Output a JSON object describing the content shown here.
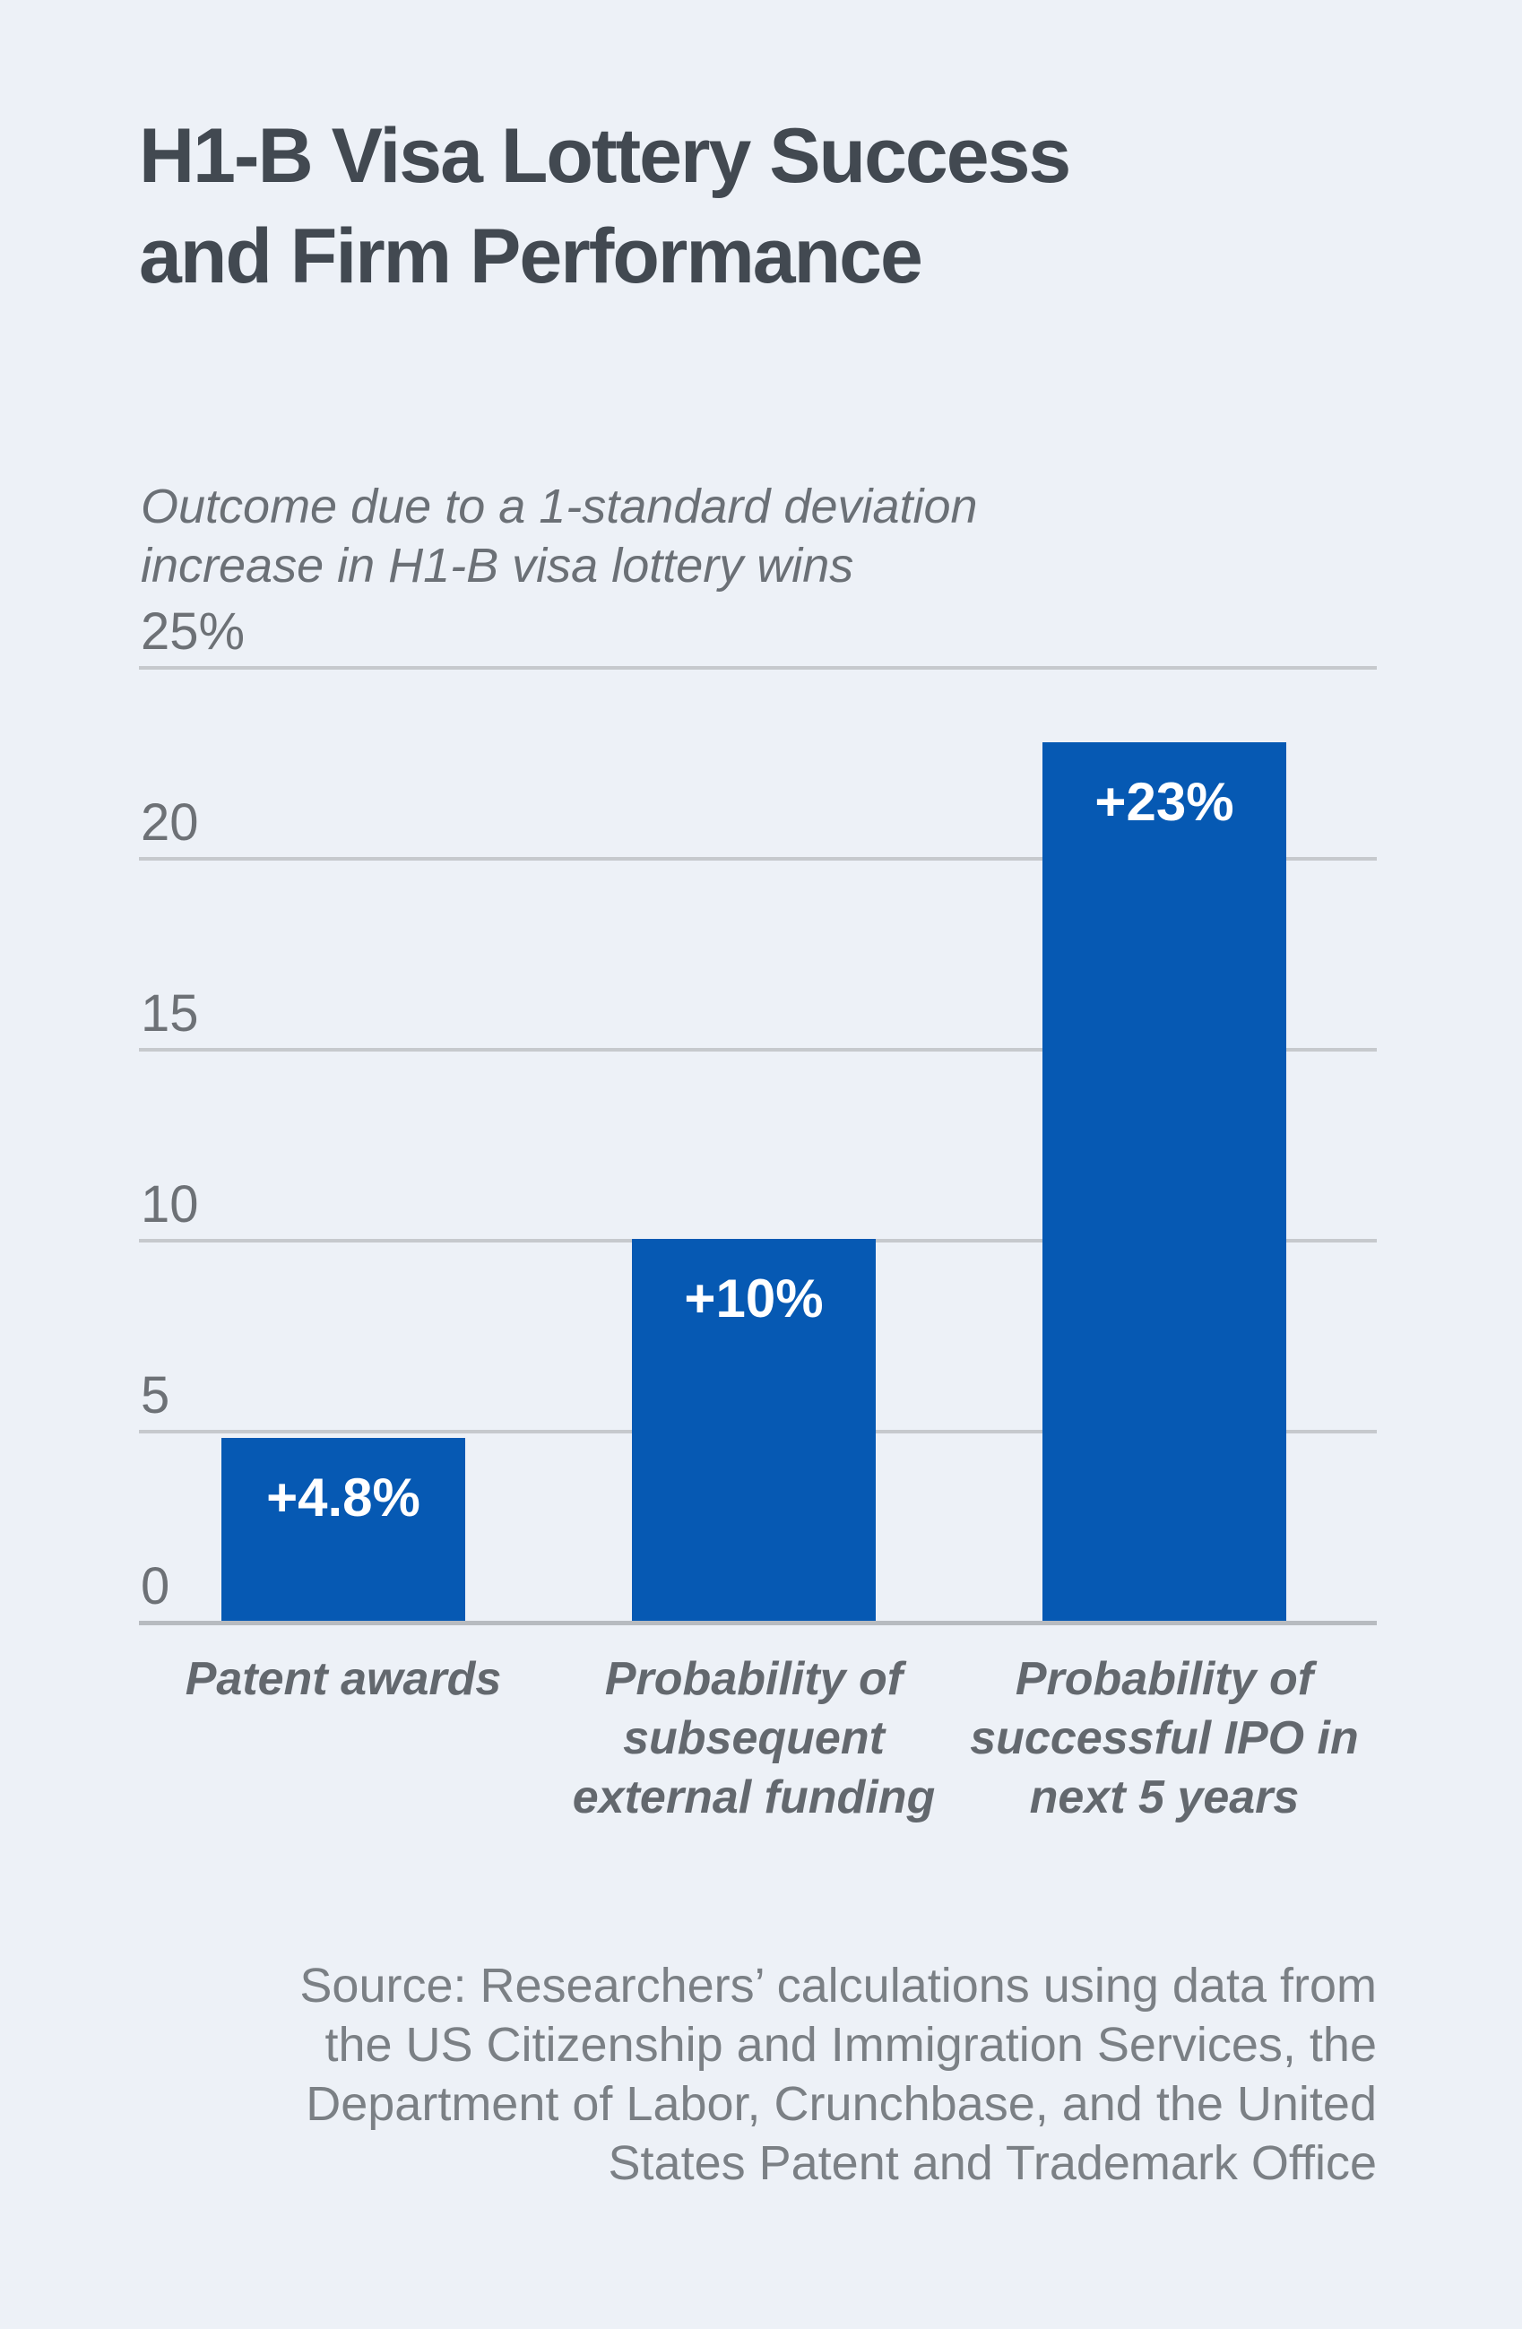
{
  "header": {
    "title_lines": [
      "H1-B Visa Lottery Success",
      "and Firm Performance"
    ]
  },
  "chart": {
    "subtitle_lines": [
      "Outcome due to a 1-standard deviation",
      "increase in H1-B visa lottery wins"
    ]
  },
  "chart_data": {
    "type": "bar",
    "title": "H1-B Visa Lottery Success and Firm Performance",
    "subtitle": "Outcome due to a 1-standard deviation increase in H1-B visa lottery wins",
    "categories": [
      "Patent awards",
      "Probability of subsequent external funding",
      "Probability of successful IPO in next 5 years"
    ],
    "category_lines": [
      [
        "Patent awards"
      ],
      [
        "Probability of",
        "subsequent",
        "external funding"
      ],
      [
        "Probability of",
        "successful IPO in",
        "next 5 years"
      ]
    ],
    "values": [
      4.8,
      10,
      23
    ],
    "bar_labels": [
      "+4.8%",
      "+10%",
      "+23%"
    ],
    "ylim": [
      0,
      25
    ],
    "yticks": [
      0,
      5,
      10,
      15,
      20,
      25
    ],
    "ytick_labels": [
      "0",
      "5",
      "10",
      "15",
      "20",
      "25%"
    ],
    "grid": true,
    "legend": false,
    "bar_color": "#0659b3"
  },
  "source": {
    "lines": [
      "Source: Researchers’ calculations using data from",
      "the US Citizenship and Immigration Services, the",
      "Department of Labor, Crunchbase, and the United",
      "States Patent and Trademark Office"
    ]
  },
  "colors": {
    "background": "#edf1f7",
    "bar_blue": "#0659b3",
    "title_text": "#424951",
    "muted_text": "#6b7076",
    "gridline": "#c6c9cd"
  }
}
